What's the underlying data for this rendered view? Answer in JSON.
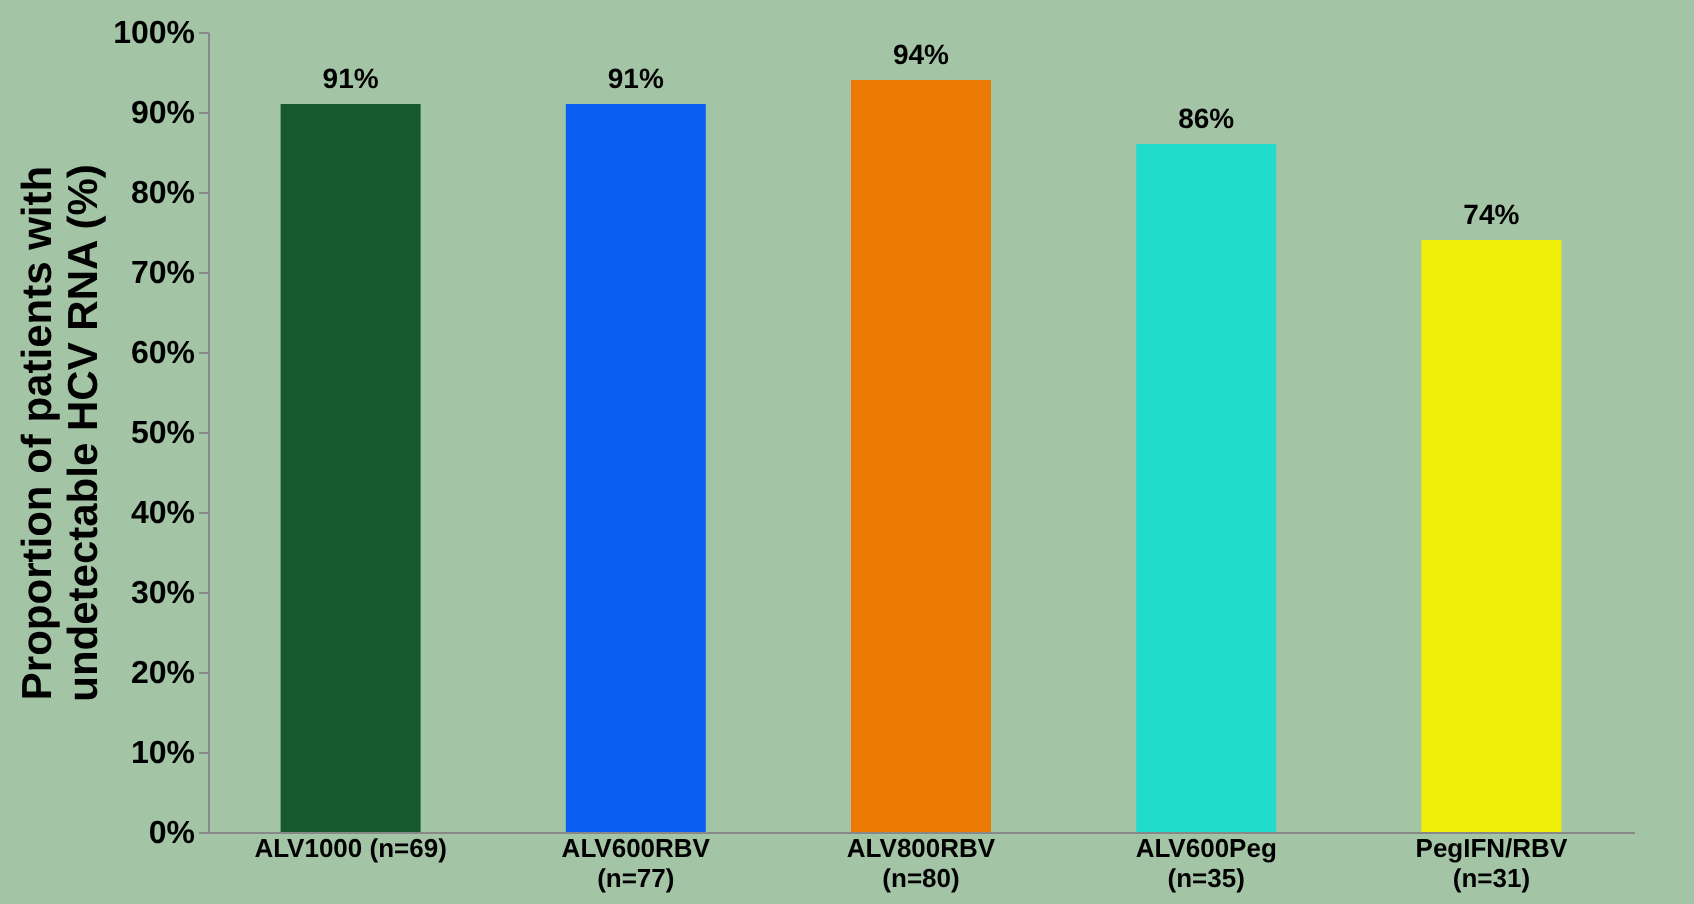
{
  "chart_data": {
    "type": "bar",
    "ylabel": "Proportion of patients with\nundetectable HCV RNA (%)",
    "categories": [
      "ALV1000 (n=69)",
      "ALV600RBV\n(n=77)",
      "ALV800RBV\n(n=80)",
      "ALV600Peg\n(n=35)",
      "PegIFN/RBV\n(n=31)"
    ],
    "values": [
      91,
      91,
      94,
      86,
      74
    ],
    "colors": [
      "#17582e",
      "#0a5ef2",
      "#ee7a06",
      "#22dccb",
      "#eeee08"
    ],
    "value_labels": [
      "91%",
      "91%",
      "94%",
      "86%",
      "74%"
    ],
    "ylim": [
      0,
      100
    ],
    "yticks": [
      {
        "value": 0,
        "label": "0%"
      },
      {
        "value": 10,
        "label": "10%"
      },
      {
        "value": 20,
        "label": "20%"
      },
      {
        "value": 30,
        "label": "30%"
      },
      {
        "value": 40,
        "label": "40%"
      },
      {
        "value": 50,
        "label": "50%"
      },
      {
        "value": 60,
        "label": "60%"
      },
      {
        "value": 70,
        "label": "70%"
      },
      {
        "value": 80,
        "label": "80%"
      },
      {
        "value": 90,
        "label": "90%"
      },
      {
        "value": 100,
        "label": "100%"
      }
    ],
    "grid": false
  }
}
